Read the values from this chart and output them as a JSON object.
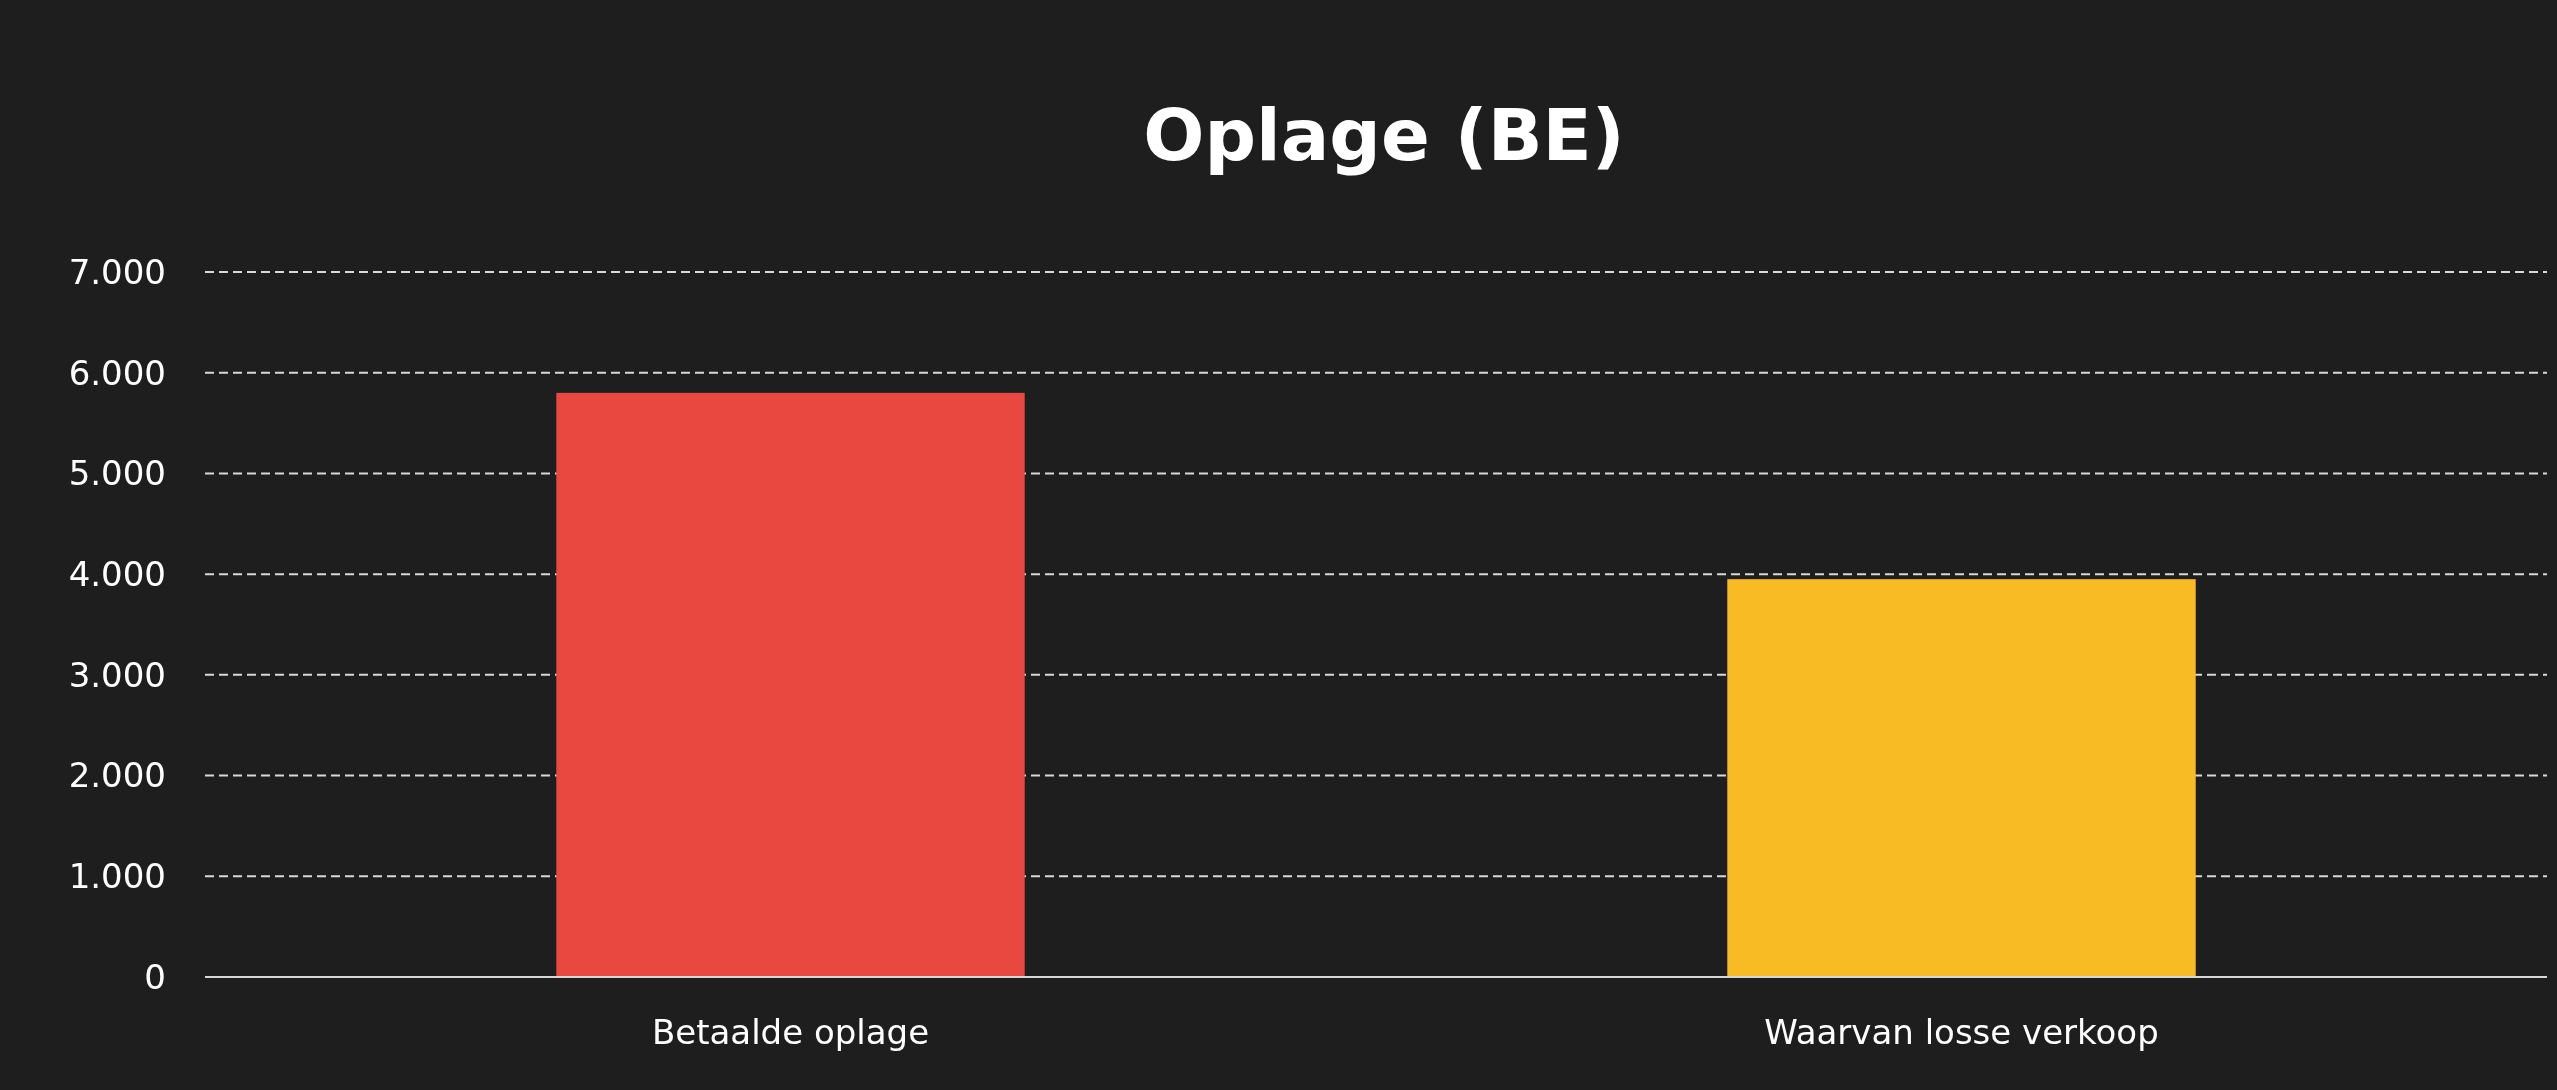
{
  "chart_data": {
    "type": "bar",
    "title": "Oplage (BE)",
    "categories": [
      "Betaalde oplage",
      "Waarvan losse verkoop"
    ],
    "values": [
      5800,
      3950
    ],
    "colors": [
      "#e8483f",
      "#f9bb24"
    ],
    "ylim": [
      0,
      7000
    ],
    "yticks": [
      {
        "value": 0,
        "label": "0"
      },
      {
        "value": 1000,
        "label": "1.000"
      },
      {
        "value": 2000,
        "label": "2.000"
      },
      {
        "value": 3000,
        "label": "3.000"
      },
      {
        "value": 4000,
        "label": "4.000"
      },
      {
        "value": 5000,
        "label": "5.000"
      },
      {
        "value": 6000,
        "label": "6.000"
      },
      {
        "value": 7000,
        "label": "7.000"
      }
    ],
    "grid": "y"
  }
}
